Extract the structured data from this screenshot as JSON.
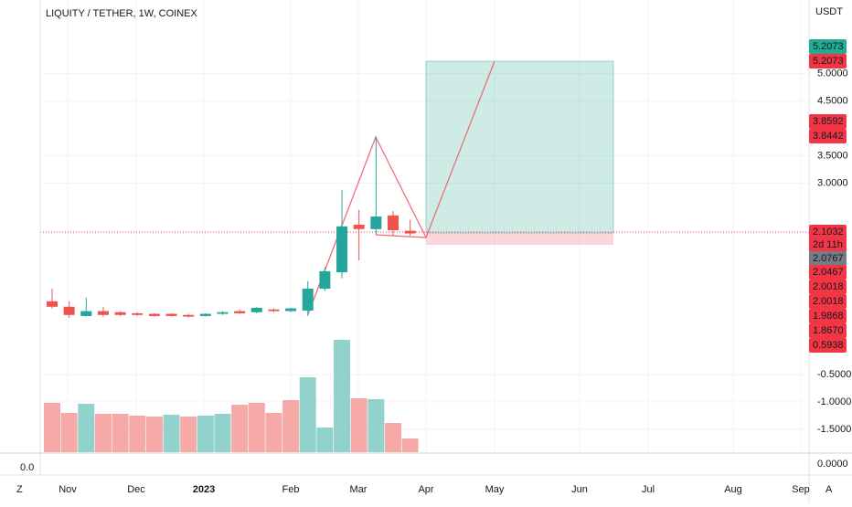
{
  "chart_data": {
    "type": "candlestick",
    "title": "LIQUITY / TETHER, 1W, COINEX",
    "currency": "USDT",
    "up_color": "#26a69a",
    "down_color": "#ef5350",
    "open": [
      0.84,
      0.74,
      0.57,
      0.66,
      0.64,
      0.62,
      0.61,
      0.61,
      0.59,
      0.57,
      0.61,
      0.66,
      0.64,
      0.69,
      0.66,
      0.67,
      1.07,
      1.37,
      2.24,
      2.16,
      2.41,
      2.13
    ],
    "high": [
      1.07,
      0.84,
      0.91,
      0.74,
      0.66,
      0.64,
      0.62,
      0.62,
      0.61,
      0.62,
      0.66,
      0.69,
      0.74,
      0.71,
      0.72,
      1.21,
      1.46,
      2.88,
      2.51,
      3.85,
      2.49,
      2.33
    ],
    "low": [
      0.71,
      0.54,
      0.56,
      0.56,
      0.57,
      0.57,
      0.56,
      0.56,
      0.54,
      0.56,
      0.59,
      0.61,
      0.62,
      0.64,
      0.64,
      0.57,
      1.03,
      1.26,
      1.59,
      2.06,
      2.04,
      2.04
    ],
    "close": [
      0.74,
      0.59,
      0.66,
      0.59,
      0.59,
      0.59,
      0.57,
      0.57,
      0.56,
      0.61,
      0.64,
      0.62,
      0.72,
      0.66,
      0.71,
      1.07,
      1.39,
      2.21,
      2.16,
      2.39,
      2.14,
      2.08
    ],
    "volume": [
      54,
      43,
      53,
      42,
      42,
      40,
      39,
      41,
      39,
      40,
      42,
      52,
      54,
      43,
      57,
      82,
      27,
      123,
      59,
      58,
      32,
      15
    ],
    "volume_colors": [
      "#f7a9a7",
      "#f7a9a7",
      "#92d2cc",
      "#f7a9a7",
      "#f7a9a7",
      "#f7a9a7",
      "#f7a9a7",
      "#92d2cc",
      "#f7a9a7",
      "#92d2cc",
      "#92d2cc",
      "#f7a9a7",
      "#f7a9a7",
      "#f7a9a7",
      "#f7a9a7",
      "#92d2cc",
      "#92d2cc",
      "#92d2cc",
      "#f7a9a7",
      "#92d2cc",
      "#f7a9a7",
      "#f7a9a7"
    ],
    "ylim": [
      -1.92,
      6.35
    ],
    "yticks": [
      {
        "value": 5,
        "label": "5.0000"
      },
      {
        "value": 4.5,
        "label": "4.5000"
      },
      {
        "value": 3.5,
        "label": "3.5000"
      },
      {
        "value": 3,
        "label": "3.0000"
      },
      {
        "value": -0.5,
        "label": "-0.5000"
      },
      {
        "value": -1,
        "label": "-1.0000"
      },
      {
        "value": -1.5,
        "label": "-1.5000"
      }
    ],
    "x_labels": [
      "Nov",
      "Dec",
      "2023",
      "Feb",
      "Mar",
      "Apr",
      "May",
      "Jun",
      "Jul",
      "Aug",
      "Sep"
    ],
    "price_labels": [
      {
        "value": 5.2073,
        "label": "5.2073",
        "color": "#22ab94"
      },
      {
        "value": 5.2073,
        "label": "5.2073",
        "color": "#f23645"
      },
      {
        "value": 3.8592,
        "label": "3.8592",
        "color": "#f23645"
      },
      {
        "value": 3.8442,
        "label": "3.8442",
        "color": "#f23645"
      },
      {
        "value": 2.1032,
        "label": "2.1032",
        "color": "#f23645"
      },
      {
        "label": "2d 11h",
        "color": "#f23645"
      },
      {
        "value": 2.0767,
        "label": "2.0767",
        "color": "#787b86"
      },
      {
        "value": 2.0467,
        "label": "2.0467",
        "color": "#f23645"
      },
      {
        "value": 2.0018,
        "label": "2.0018",
        "color": "#f23645"
      },
      {
        "value": 2.0018,
        "label": "2.0018",
        "color": "#f23645"
      },
      {
        "value": 1.9868,
        "label": "1.9868",
        "color": "#f23645"
      },
      {
        "value": 1.867,
        "label": "1.8670",
        "color": "#f23645"
      },
      {
        "value": 0.5938,
        "label": "0.5938",
        "color": "#f23645"
      }
    ],
    "lower_pane": {
      "right_label": "0.0000",
      "left_label": "0.0"
    },
    "controls": [
      "Z",
      "A"
    ]
  }
}
